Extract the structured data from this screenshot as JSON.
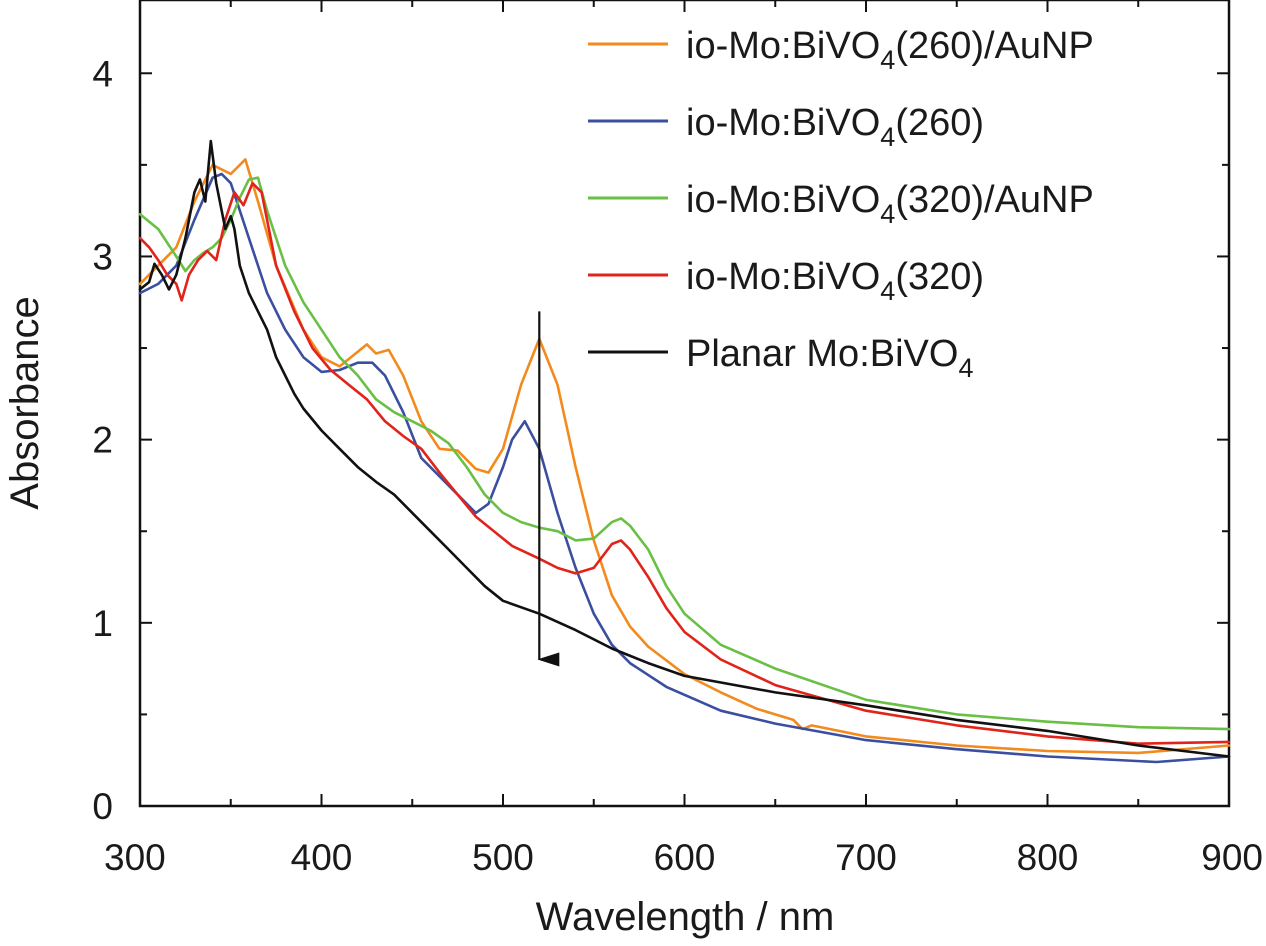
{
  "chart_data": {
    "type": "line",
    "xlabel": "Wavelength / nm",
    "ylabel": "Absorbance",
    "xlim": [
      300,
      900
    ],
    "ylim": [
      0,
      4.4
    ],
    "xticks": [
      300,
      400,
      500,
      600,
      700,
      800,
      900
    ],
    "yticks": [
      0,
      1,
      2,
      3,
      4
    ],
    "grid": false,
    "legend_position": "top-right",
    "series": [
      {
        "name": "io-Mo:BiVO4(260)/AuNP",
        "color": "#f28a1e",
        "points": [
          [
            300,
            2.85
          ],
          [
            310,
            2.95
          ],
          [
            320,
            3.05
          ],
          [
            330,
            3.3
          ],
          [
            340,
            3.5
          ],
          [
            350,
            3.45
          ],
          [
            358,
            3.53
          ],
          [
            365,
            3.3
          ],
          [
            375,
            2.95
          ],
          [
            390,
            2.6
          ],
          [
            400,
            2.45
          ],
          [
            410,
            2.4
          ],
          [
            420,
            2.48
          ],
          [
            425,
            2.52
          ],
          [
            430,
            2.47
          ],
          [
            437,
            2.49
          ],
          [
            445,
            2.35
          ],
          [
            455,
            2.1
          ],
          [
            465,
            1.95
          ],
          [
            475,
            1.94
          ],
          [
            485,
            1.84
          ],
          [
            492,
            1.82
          ],
          [
            500,
            1.95
          ],
          [
            510,
            2.3
          ],
          [
            520,
            2.55
          ],
          [
            530,
            2.3
          ],
          [
            540,
            1.85
          ],
          [
            550,
            1.45
          ],
          [
            560,
            1.15
          ],
          [
            570,
            0.98
          ],
          [
            580,
            0.87
          ],
          [
            600,
            0.72
          ],
          [
            620,
            0.62
          ],
          [
            640,
            0.53
          ],
          [
            660,
            0.47
          ],
          [
            665,
            0.42
          ],
          [
            670,
            0.44
          ],
          [
            700,
            0.38
          ],
          [
            750,
            0.33
          ],
          [
            800,
            0.3
          ],
          [
            850,
            0.29
          ],
          [
            900,
            0.33
          ]
        ]
      },
      {
        "name": "io-Mo:BiVO4(260)",
        "color": "#3a4fa0",
        "points": [
          [
            300,
            2.8
          ],
          [
            310,
            2.85
          ],
          [
            320,
            2.95
          ],
          [
            330,
            3.2
          ],
          [
            340,
            3.43
          ],
          [
            345,
            3.45
          ],
          [
            350,
            3.4
          ],
          [
            360,
            3.1
          ],
          [
            370,
            2.8
          ],
          [
            380,
            2.6
          ],
          [
            390,
            2.45
          ],
          [
            400,
            2.37
          ],
          [
            410,
            2.38
          ],
          [
            420,
            2.42
          ],
          [
            428,
            2.42
          ],
          [
            435,
            2.35
          ],
          [
            445,
            2.15
          ],
          [
            455,
            1.9
          ],
          [
            465,
            1.8
          ],
          [
            475,
            1.7
          ],
          [
            485,
            1.6
          ],
          [
            492,
            1.65
          ],
          [
            500,
            1.85
          ],
          [
            505,
            2.0
          ],
          [
            512,
            2.1
          ],
          [
            520,
            1.95
          ],
          [
            530,
            1.6
          ],
          [
            540,
            1.3
          ],
          [
            550,
            1.05
          ],
          [
            560,
            0.88
          ],
          [
            570,
            0.78
          ],
          [
            590,
            0.65
          ],
          [
            620,
            0.52
          ],
          [
            650,
            0.45
          ],
          [
            700,
            0.36
          ],
          [
            750,
            0.31
          ],
          [
            800,
            0.27
          ],
          [
            860,
            0.24
          ],
          [
            900,
            0.27
          ]
        ]
      },
      {
        "name": "io-Mo:BiVO4(320)/AuNP",
        "color": "#6abf45",
        "points": [
          [
            300,
            3.23
          ],
          [
            310,
            3.15
          ],
          [
            320,
            3.0
          ],
          [
            325,
            2.92
          ],
          [
            330,
            2.98
          ],
          [
            335,
            3.02
          ],
          [
            340,
            3.05
          ],
          [
            345,
            3.1
          ],
          [
            350,
            3.2
          ],
          [
            355,
            3.32
          ],
          [
            360,
            3.42
          ],
          [
            365,
            3.43
          ],
          [
            370,
            3.25
          ],
          [
            380,
            2.95
          ],
          [
            390,
            2.75
          ],
          [
            400,
            2.6
          ],
          [
            410,
            2.45
          ],
          [
            420,
            2.35
          ],
          [
            430,
            2.22
          ],
          [
            440,
            2.15
          ],
          [
            450,
            2.1
          ],
          [
            460,
            2.05
          ],
          [
            470,
            1.98
          ],
          [
            480,
            1.85
          ],
          [
            490,
            1.7
          ],
          [
            500,
            1.6
          ],
          [
            510,
            1.55
          ],
          [
            520,
            1.52
          ],
          [
            530,
            1.5
          ],
          [
            540,
            1.45
          ],
          [
            550,
            1.46
          ],
          [
            560,
            1.55
          ],
          [
            565,
            1.57
          ],
          [
            570,
            1.53
          ],
          [
            580,
            1.4
          ],
          [
            590,
            1.2
          ],
          [
            600,
            1.05
          ],
          [
            620,
            0.88
          ],
          [
            650,
            0.75
          ],
          [
            700,
            0.58
          ],
          [
            750,
            0.5
          ],
          [
            800,
            0.46
          ],
          [
            850,
            0.43
          ],
          [
            900,
            0.42
          ]
        ]
      },
      {
        "name": "io-Mo:BiVO4(320)",
        "color": "#e2231a",
        "points": [
          [
            300,
            3.1
          ],
          [
            305,
            3.05
          ],
          [
            310,
            2.98
          ],
          [
            315,
            2.9
          ],
          [
            320,
            2.85
          ],
          [
            323,
            2.76
          ],
          [
            327,
            2.9
          ],
          [
            332,
            2.98
          ],
          [
            337,
            3.03
          ],
          [
            342,
            2.98
          ],
          [
            347,
            3.2
          ],
          [
            352,
            3.35
          ],
          [
            357,
            3.28
          ],
          [
            362,
            3.4
          ],
          [
            367,
            3.35
          ],
          [
            375,
            2.95
          ],
          [
            385,
            2.7
          ],
          [
            395,
            2.5
          ],
          [
            405,
            2.38
          ],
          [
            415,
            2.3
          ],
          [
            425,
            2.22
          ],
          [
            435,
            2.1
          ],
          [
            445,
            2.02
          ],
          [
            455,
            1.95
          ],
          [
            465,
            1.82
          ],
          [
            475,
            1.7
          ],
          [
            485,
            1.58
          ],
          [
            495,
            1.5
          ],
          [
            505,
            1.42
          ],
          [
            520,
            1.35
          ],
          [
            530,
            1.3
          ],
          [
            540,
            1.27
          ],
          [
            550,
            1.3
          ],
          [
            560,
            1.43
          ],
          [
            565,
            1.45
          ],
          [
            570,
            1.4
          ],
          [
            580,
            1.25
          ],
          [
            590,
            1.08
          ],
          [
            600,
            0.95
          ],
          [
            620,
            0.8
          ],
          [
            650,
            0.66
          ],
          [
            700,
            0.52
          ],
          [
            750,
            0.44
          ],
          [
            800,
            0.38
          ],
          [
            850,
            0.34
          ],
          [
            900,
            0.35
          ]
        ]
      },
      {
        "name": "Planar Mo:BiVO4",
        "color": "#111111",
        "points": [
          [
            300,
            2.82
          ],
          [
            305,
            2.86
          ],
          [
            308,
            2.96
          ],
          [
            312,
            2.9
          ],
          [
            316,
            2.82
          ],
          [
            320,
            2.9
          ],
          [
            325,
            3.1
          ],
          [
            330,
            3.35
          ],
          [
            333,
            3.42
          ],
          [
            336,
            3.3
          ],
          [
            339,
            3.63
          ],
          [
            342,
            3.4
          ],
          [
            345,
            3.25
          ],
          [
            347,
            3.15
          ],
          [
            350,
            3.22
          ],
          [
            352,
            3.15
          ],
          [
            355,
            2.95
          ],
          [
            360,
            2.8
          ],
          [
            365,
            2.7
          ],
          [
            370,
            2.6
          ],
          [
            375,
            2.45
          ],
          [
            380,
            2.35
          ],
          [
            385,
            2.25
          ],
          [
            390,
            2.17
          ],
          [
            400,
            2.05
          ],
          [
            410,
            1.95
          ],
          [
            420,
            1.85
          ],
          [
            430,
            1.77
          ],
          [
            440,
            1.7
          ],
          [
            450,
            1.6
          ],
          [
            460,
            1.5
          ],
          [
            470,
            1.4
          ],
          [
            480,
            1.3
          ],
          [
            490,
            1.2
          ],
          [
            500,
            1.12
          ],
          [
            520,
            1.05
          ],
          [
            540,
            0.96
          ],
          [
            560,
            0.86
          ],
          [
            580,
            0.78
          ],
          [
            600,
            0.71
          ],
          [
            650,
            0.62
          ],
          [
            700,
            0.55
          ],
          [
            750,
            0.47
          ],
          [
            800,
            0.41
          ],
          [
            850,
            0.33
          ],
          [
            900,
            0.27
          ]
        ]
      }
    ],
    "annotation_arrow": {
      "x": 520,
      "y_start": 2.7,
      "y_end": 0.8
    }
  }
}
